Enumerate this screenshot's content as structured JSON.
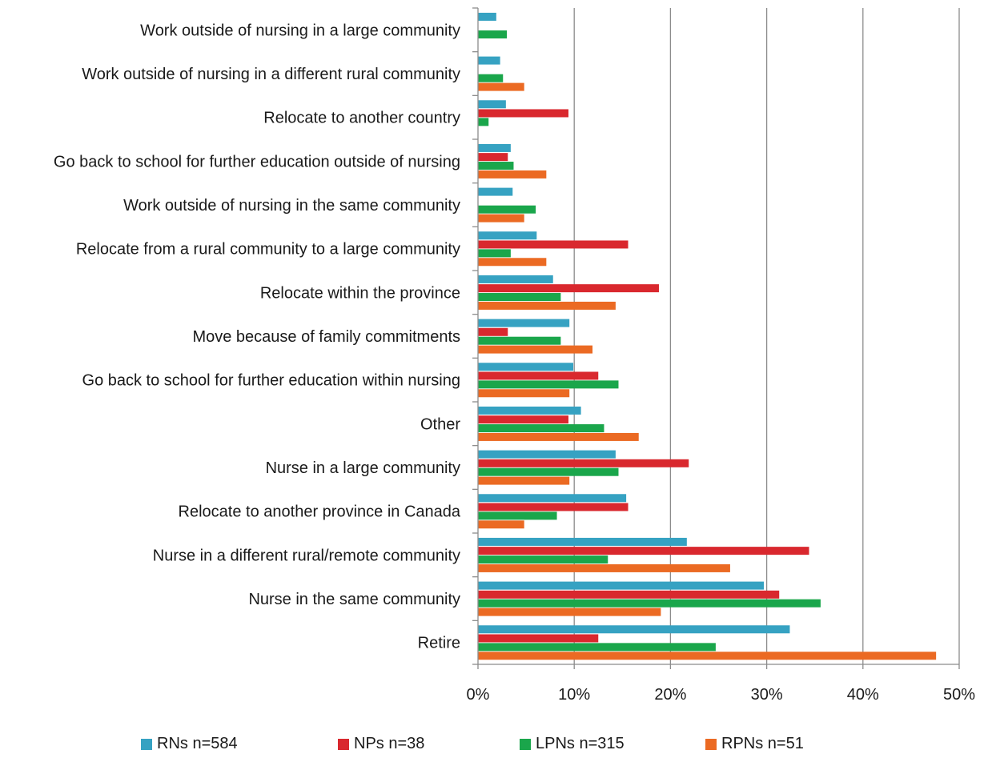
{
  "chart_data": {
    "type": "bar",
    "orientation": "horizontal",
    "categories": [
      "Work outside of nursing in a large community",
      "Work outside of nursing in a different rural community",
      "Relocate to another country",
      "Go back to school for further education outside of nursing",
      "Work outside of nursing in the same community",
      "Relocate from a rural community to a large community",
      "Relocate within the province",
      "Move because of family commitments",
      "Go back to school for further education within nursing",
      "Other",
      "Nurse in a large community",
      "Relocate to another province in Canada",
      "Nurse in a different rural/remote community",
      "Nurse in the same community",
      "Retire"
    ],
    "series": [
      {
        "name": "RNs n=584",
        "color": "#36A2C2",
        "values": [
          1.9,
          2.3,
          2.9,
          3.4,
          3.6,
          6.1,
          7.8,
          9.5,
          9.9,
          10.7,
          14.3,
          15.4,
          21.7,
          29.7,
          32.4
        ]
      },
      {
        "name": "NPs n=38",
        "color": "#D9282E",
        "values": [
          0,
          0,
          9.4,
          3.1,
          0,
          15.6,
          18.8,
          3.1,
          12.5,
          9.4,
          21.9,
          15.6,
          34.4,
          31.3,
          12.5
        ]
      },
      {
        "name": "LPNs n=315",
        "color": "#1AA64B",
        "values": [
          3.0,
          2.6,
          1.1,
          3.7,
          6.0,
          3.4,
          8.6,
          8.6,
          14.6,
          13.1,
          14.6,
          8.2,
          13.5,
          35.6,
          24.7
        ]
      },
      {
        "name": "RPNs n=51",
        "color": "#EB6A23",
        "values": [
          0,
          4.8,
          0,
          7.1,
          4.8,
          7.1,
          14.3,
          11.9,
          9.5,
          16.7,
          9.5,
          4.8,
          26.2,
          19.0,
          47.6
        ]
      }
    ],
    "xlim": [
      0,
      50
    ],
    "x_ticks": [
      "0%",
      "10%",
      "20%",
      "30%",
      "40%",
      "50%"
    ],
    "grid": "vertical",
    "legend_position": "bottom",
    "title": "",
    "xlabel": "",
    "ylabel": ""
  }
}
